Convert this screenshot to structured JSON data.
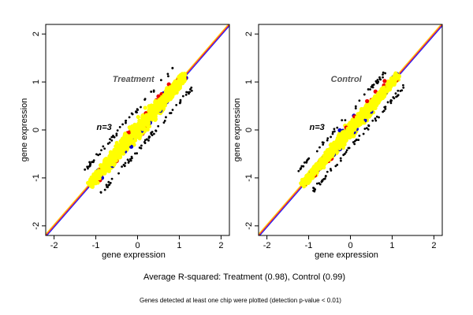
{
  "chart_data": [
    {
      "type": "scatter",
      "panel_title": "Treatment",
      "n_label": "n=3",
      "xlabel": "gene expression",
      "ylabel": "gene expression",
      "xlim": [
        -2.2,
        2.2
      ],
      "ylim": [
        -2.2,
        2.2
      ],
      "xticks": [
        -2,
        -1,
        0,
        1,
        2
      ],
      "yticks": [
        -2,
        -1,
        0,
        1,
        2
      ],
      "grid": false,
      "reference_lines": [
        {
          "color": "#ff0000",
          "slope": 1,
          "intercept": 0
        },
        {
          "color": "#0000ff",
          "slope": 1,
          "intercept": -0.03
        },
        {
          "color": "#ffd000",
          "slope": 1,
          "intercept": 0.03
        }
      ],
      "point_cloud": {
        "x_range": [
          -1.15,
          1.15
        ],
        "spread_perpendicular": 0.12,
        "colors": [
          "#0000cc",
          "#ee0000",
          "#ffff00"
        ]
      },
      "series": [
        {
          "color": "#0000cc",
          "points": [
            [
              -0.95,
              -0.85
            ],
            [
              -0.6,
              -0.75
            ],
            [
              -0.3,
              -0.45
            ],
            [
              0.1,
              -0.02
            ],
            [
              0.55,
              0.4
            ],
            [
              0.9,
              0.8
            ],
            [
              -0.85,
              -1.0
            ],
            [
              0.3,
              0.15
            ],
            [
              -0.15,
              -0.35
            ],
            [
              0.7,
              0.58
            ]
          ]
        },
        {
          "color": "#ee0000",
          "points": [
            [
              -0.9,
              -1.05
            ],
            [
              -0.5,
              -0.65
            ],
            [
              0.2,
              0.35
            ],
            [
              0.45,
              0.62
            ],
            [
              0.75,
              0.95
            ],
            [
              -0.2,
              -0.05
            ],
            [
              0.95,
              1.02
            ],
            [
              0.5,
              0.7
            ]
          ]
        }
      ]
    },
    {
      "type": "scatter",
      "panel_title": "Control",
      "n_label": "n=3",
      "xlabel": "gene expression",
      "ylabel": "gene expression",
      "xlim": [
        -2.2,
        2.2
      ],
      "ylim": [
        -2.2,
        2.2
      ],
      "xticks": [
        -2,
        -1,
        0,
        1,
        2
      ],
      "yticks": [
        -2,
        -1,
        0,
        1,
        2
      ],
      "grid": false,
      "reference_lines": [
        {
          "color": "#ff0000",
          "slope": 1,
          "intercept": 0
        },
        {
          "color": "#0000ff",
          "slope": 1,
          "intercept": -0.03
        },
        {
          "color": "#ffd000",
          "slope": 1,
          "intercept": 0.03
        }
      ],
      "point_cloud": {
        "x_range": [
          -1.15,
          1.15
        ],
        "spread_perpendicular": 0.1,
        "colors": [
          "#0000cc",
          "#ee0000",
          "#ffff00"
        ]
      },
      "series": [
        {
          "color": "#0000cc",
          "points": [
            [
              -0.95,
              -0.9
            ],
            [
              -0.7,
              -0.78
            ],
            [
              -0.4,
              -0.52
            ],
            [
              0.15,
              0.02
            ],
            [
              0.5,
              0.38
            ],
            [
              0.85,
              0.78
            ],
            [
              -0.25,
              -0.4
            ],
            [
              0.35,
              0.2
            ]
          ]
        },
        {
          "color": "#ee0000",
          "points": [
            [
              -0.85,
              -0.95
            ],
            [
              -0.45,
              -0.6
            ],
            [
              0.1,
              0.28
            ],
            [
              0.6,
              0.8
            ],
            [
              0.82,
              1.02
            ],
            [
              -0.1,
              0.05
            ],
            [
              0.4,
              0.6
            ]
          ]
        }
      ]
    }
  ],
  "summary": "Average R-squared: Treatment (0.98), Control (0.99)",
  "footnote": "Genes detected at least one chip were plotted (detection p-value < 0.01)"
}
